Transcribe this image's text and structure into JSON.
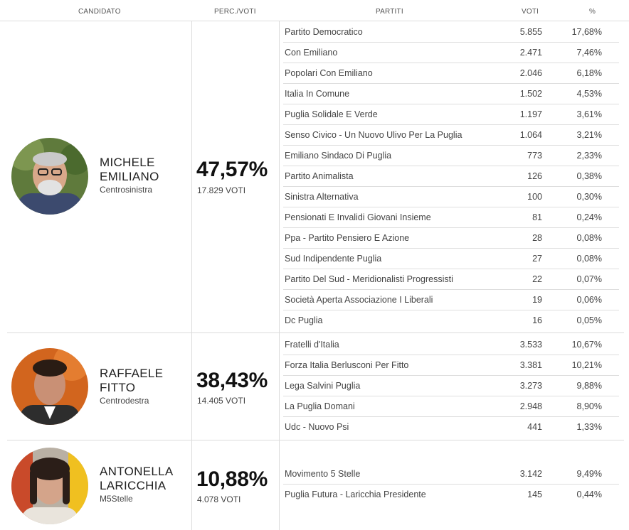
{
  "headers": {
    "candidato": "CANDIDATO",
    "perc_voti": "PERC./VOTI",
    "partiti": "PARTITI",
    "voti": "VOTI",
    "pct": "%"
  },
  "candidates": [
    {
      "name_line1": "MICHELE",
      "name_line2": "EMILIANO",
      "coalition": "Centrosinistra",
      "percent": "47,57%",
      "votes": "17.829 VOTI",
      "parties": [
        {
          "name": "Partito Democratico",
          "votes": "5.855",
          "pct": "17,68%"
        },
        {
          "name": "Con Emiliano",
          "votes": "2.471",
          "pct": "7,46%"
        },
        {
          "name": "Popolari Con Emiliano",
          "votes": "2.046",
          "pct": "6,18%"
        },
        {
          "name": "Italia In Comune",
          "votes": "1.502",
          "pct": "4,53%"
        },
        {
          "name": "Puglia Solidale E Verde",
          "votes": "1.197",
          "pct": "3,61%"
        },
        {
          "name": "Senso Civico - Un Nuovo Ulivo Per La Puglia",
          "votes": "1.064",
          "pct": "3,21%"
        },
        {
          "name": "Emiliano Sindaco Di Puglia",
          "votes": "773",
          "pct": "2,33%"
        },
        {
          "name": "Partito Animalista",
          "votes": "126",
          "pct": "0,38%"
        },
        {
          "name": "Sinistra Alternativa",
          "votes": "100",
          "pct": "0,30%"
        },
        {
          "name": "Pensionati E Invalidi Giovani Insieme",
          "votes": "81",
          "pct": "0,24%"
        },
        {
          "name": "Ppa - Partito Pensiero E Azione",
          "votes": "28",
          "pct": "0,08%"
        },
        {
          "name": "Sud Indipendente Puglia",
          "votes": "27",
          "pct": "0,08%"
        },
        {
          "name": "Partito Del Sud - Meridionalisti Progressisti",
          "votes": "22",
          "pct": "0,07%"
        },
        {
          "name": "Società Aperta Associazione I Liberali",
          "votes": "19",
          "pct": "0,06%"
        },
        {
          "name": "Dc Puglia",
          "votes": "16",
          "pct": "0,05%"
        }
      ]
    },
    {
      "name_line1": "RAFFAELE",
      "name_line2": "FITTO",
      "coalition": "Centrodestra",
      "percent": "38,43%",
      "votes": "14.405 VOTI",
      "parties": [
        {
          "name": "Fratelli d'Italia",
          "votes": "3.533",
          "pct": "10,67%"
        },
        {
          "name": "Forza Italia Berlusconi Per Fitto",
          "votes": "3.381",
          "pct": "10,21%"
        },
        {
          "name": "Lega Salvini Puglia",
          "votes": "3.273",
          "pct": "9,88%"
        },
        {
          "name": "La Puglia Domani",
          "votes": "2.948",
          "pct": "8,90%"
        },
        {
          "name": "Udc - Nuovo Psi",
          "votes": "441",
          "pct": "1,33%"
        }
      ]
    },
    {
      "name_line1": "ANTONELLA",
      "name_line2": "LARICCHIA",
      "coalition": "M5Stelle",
      "percent": "10,88%",
      "votes": "4.078 VOTI",
      "parties": [
        {
          "name": "Movimento 5 Stelle",
          "votes": "3.142",
          "pct": "9,49%"
        },
        {
          "name": "Puglia Futura - Laricchia Presidente",
          "votes": "145",
          "pct": "0,44%"
        }
      ]
    }
  ]
}
